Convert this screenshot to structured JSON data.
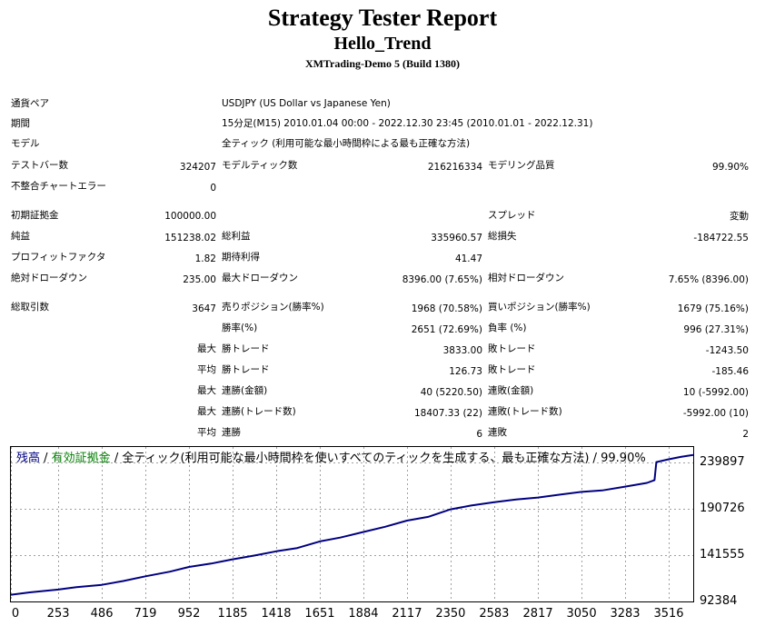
{
  "header": {
    "title": "Strategy Tester Report",
    "ea_name": "Hello_Trend",
    "server": "XMTrading-Demo 5 (Build 1380)"
  },
  "info": {
    "symbol_label": "通貨ペア",
    "symbol_value": "USDJPY (US Dollar vs Japanese Yen)",
    "period_label": "期間",
    "period_value": "15分足(M15) 2010.01.04 00:00 - 2022.12.30 23:45 (2010.01.01 - 2022.12.31)",
    "model_label": "モデル",
    "model_value": "全ティック (利用可能な最小時間枠による最も正確な方法)",
    "bars_label": "テストバー数",
    "bars_value": "324207",
    "ticks_label": "モデルティック数",
    "ticks_value": "216216334",
    "quality_label": "モデリング品質",
    "quality_value": "99.90%",
    "errors_label": "不整合チャートエラー",
    "errors_value": "0"
  },
  "summary": {
    "deposit_label": "初期証拠金",
    "deposit_value": "100000.00",
    "spread_label": "スプレッド",
    "spread_value": "変動",
    "net_label": "純益",
    "net_value": "151238.02",
    "gross_profit_label": "総利益",
    "gross_profit_value": "335960.57",
    "gross_loss_label": "総損失",
    "gross_loss_value": "-184722.55",
    "pf_label": "プロフィットファクタ",
    "pf_value": "1.82",
    "expected_label": "期待利得",
    "expected_value": "41.47",
    "abs_dd_label": "絶対ドローダウン",
    "abs_dd_value": "235.00",
    "max_dd_label": "最大ドローダウン",
    "max_dd_value": "8396.00 (7.65%)",
    "rel_dd_label": "相対ドローダウン",
    "rel_dd_value": "7.65% (8396.00)"
  },
  "trades": {
    "total_label": "総取引数",
    "total_value": "3647",
    "short_label": "売りポジション(勝率%)",
    "short_value": "1968 (70.58%)",
    "long_label": "買いポジション(勝率%)",
    "long_value": "1679 (75.16%)",
    "win_rate_label": "勝率(%)",
    "win_rate_value": "2651 (72.69%)",
    "loss_rate_label": "負率 (%)",
    "loss_rate_value": "996 (27.31%)",
    "max_label": "最大",
    "avg_label": "平均",
    "win_trade_label": "勝トレード",
    "loss_trade_label": "敗トレード",
    "max_win_value": "3833.00",
    "max_loss_value": "-1243.50",
    "avg_win_value": "126.73",
    "avg_loss_value": "-185.46",
    "consec_win_money_label": "連勝(金額)",
    "consec_loss_money_label": "連敗(金額)",
    "consec_win_money_value": "40 (5220.50)",
    "consec_loss_money_value": "10 (-5992.00)",
    "consec_win_trades_label": "連勝(トレード数)",
    "consec_loss_trades_label": "連敗(トレード数)",
    "consec_win_trades_value": "18407.33 (22)",
    "consec_loss_trades_value": "-5992.00 (10)",
    "avg_consec_win_label": "連勝",
    "avg_consec_loss_label": "連敗",
    "avg_consec_win_value": "6",
    "avg_consec_loss_value": "2"
  },
  "legend": {
    "balance": "残高",
    "sep1": " / ",
    "equity": "有効証拠金",
    "rest": " / 全ティック(利用可能な最小時間枠を使いすべてのティックを生成する、最も正確な方法) / 99.90%"
  },
  "colors": {
    "balance_line": "#000080",
    "equity_text": "#008000",
    "balance_text": "#000080",
    "grid": "#a0a0a0"
  },
  "chart_data": {
    "type": "line",
    "x_ticks": [
      0,
      253,
      486,
      719,
      952,
      1185,
      1418,
      1651,
      1884,
      2117,
      2350,
      2583,
      2817,
      3050,
      3283,
      3516
    ],
    "y_ticks": [
      92384,
      141555,
      190726,
      239897
    ],
    "xlim": [
      0,
      3647
    ],
    "ylim": [
      92384,
      256000
    ],
    "grid": true,
    "series": [
      {
        "x": [
          0,
          100,
          253,
          350,
          486,
          600,
          719,
          850,
          952,
          1070,
          1185,
          1300,
          1418,
          1530,
          1651,
          1760,
          1884,
          2000,
          2117,
          2230,
          2350,
          2460,
          2583,
          2700,
          2817,
          2930,
          3050,
          3160,
          3283,
          3400,
          3440,
          3450,
          3516,
          3580,
          3647
        ],
        "y": [
          99500,
          102000,
          105000,
          107500,
          110000,
          114000,
          119000,
          124000,
          129000,
          132500,
          137000,
          141000,
          145500,
          149000,
          156000,
          160000,
          166000,
          171500,
          178000,
          182000,
          190000,
          194000,
          197500,
          200500,
          202500,
          205500,
          208500,
          210000,
          214000,
          218000,
          221000,
          240000,
          243000,
          245500,
          247500
        ]
      }
    ]
  }
}
